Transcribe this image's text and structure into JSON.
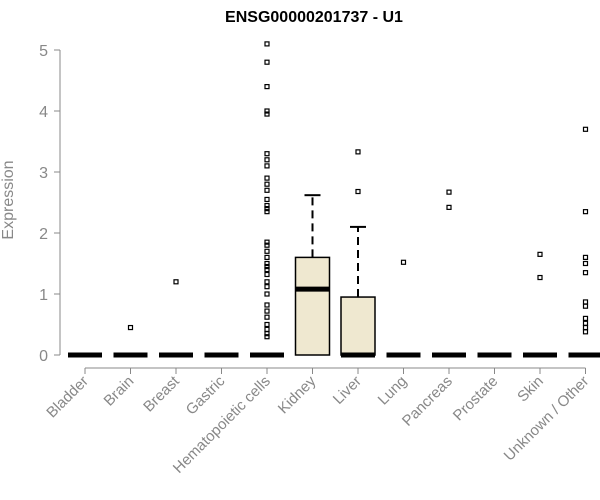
{
  "chart_data": {
    "type": "box",
    "title": "ENSG00000201737 - U1",
    "xlabel": "",
    "ylabel": "Expression",
    "ylim": [
      0,
      5.2
    ],
    "yticks": [
      0,
      1,
      2,
      3,
      4,
      5
    ],
    "grid": false,
    "legend": "none",
    "box_fill": "#efe8d0",
    "box_stroke": "#000000",
    "axis_color": "#888888",
    "categories": [
      {
        "name": "Bladder",
        "box": null,
        "outliers": []
      },
      {
        "name": "Brain",
        "box": null,
        "outliers": [
          0.45
        ]
      },
      {
        "name": "Breast",
        "box": null,
        "outliers": [
          1.2
        ]
      },
      {
        "name": "Gastric",
        "box": null,
        "outliers": []
      },
      {
        "name": "Hematopoietic cells",
        "box": null,
        "outliers": [
          0.3,
          0.35,
          0.42,
          0.5,
          0.62,
          0.72,
          0.82,
          1.0,
          1.12,
          1.2,
          1.32,
          1.4,
          1.45,
          1.5,
          1.6,
          1.7,
          1.8,
          1.85,
          2.35,
          2.4,
          2.45,
          2.55,
          2.7,
          2.8,
          2.9,
          3.1,
          3.2,
          3.3,
          3.95,
          4.0,
          4.4,
          4.8,
          5.1
        ]
      },
      {
        "name": "Kidney",
        "box": {
          "q1": 0.0,
          "median": 1.08,
          "q3": 1.6,
          "whisker_low": 0.0,
          "whisker_high": 2.62
        },
        "outliers": []
      },
      {
        "name": "Liver",
        "box": {
          "q1": 0.0,
          "median": 0.0,
          "q3": 0.95,
          "whisker_low": 0.0,
          "whisker_high": 2.1
        },
        "outliers": [
          2.68,
          3.33
        ]
      },
      {
        "name": "Lung",
        "box": null,
        "outliers": [
          1.52
        ]
      },
      {
        "name": "Pancreas",
        "box": null,
        "outliers": [
          2.42,
          2.67
        ]
      },
      {
        "name": "Prostate",
        "box": null,
        "outliers": []
      },
      {
        "name": "Skin",
        "box": null,
        "outliers": [
          1.27,
          1.65
        ]
      },
      {
        "name": "Unknown / Other",
        "box": null,
        "outliers": [
          0.38,
          0.45,
          0.52,
          0.6,
          0.8,
          0.87,
          1.35,
          1.5,
          1.6,
          2.35,
          3.7
        ]
      }
    ]
  }
}
